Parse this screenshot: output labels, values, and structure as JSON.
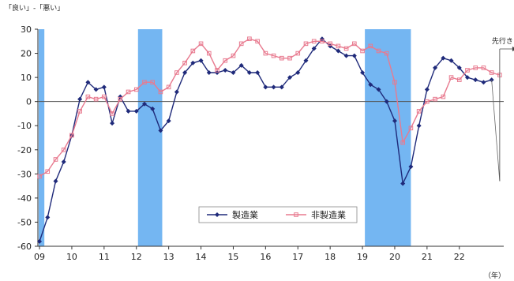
{
  "chart_data": {
    "type": "line",
    "ylabel": "「良い」-「悪い」",
    "x_unit_label": "（年）",
    "ylim": [
      -60,
      30
    ],
    "yticks": [
      30,
      20,
      10,
      0,
      -10,
      -20,
      -30,
      -40,
      -50,
      -60
    ],
    "xticks": [
      {
        "label": "09",
        "x": 0
      },
      {
        "label": "10",
        "x": 4
      },
      {
        "label": "11",
        "x": 8
      },
      {
        "label": "12",
        "x": 12
      },
      {
        "label": "13",
        "x": 16
      },
      {
        "label": "14",
        "x": 20
      },
      {
        "label": "15",
        "x": 24
      },
      {
        "label": "16",
        "x": 28
      },
      {
        "label": "17",
        "x": 32
      },
      {
        "label": "18",
        "x": 36
      },
      {
        "label": "19",
        "x": 40
      },
      {
        "label": "20",
        "x": 44
      },
      {
        "label": "21",
        "x": 48
      },
      {
        "label": "22",
        "x": 52
      }
    ],
    "xlim": [
      -0.2,
      57.5
    ],
    "recession_bands": [
      {
        "from": -0.1,
        "to": 0.6
      },
      {
        "from": 12.2,
        "to": 15.2
      },
      {
        "from": 40.3,
        "to": 46.0
      }
    ],
    "forecast_label": "先行き",
    "forecast_x": 57.0,
    "series": [
      {
        "name": "製造業",
        "color": "#1f2a7a",
        "marker": "diamond",
        "x": [
          0,
          1,
          2,
          3,
          4,
          5,
          6,
          7,
          8,
          9,
          10,
          11,
          12,
          13,
          14,
          15,
          16,
          17,
          18,
          19,
          20,
          21,
          22,
          23,
          24,
          25,
          26,
          27,
          28,
          29,
          30,
          31,
          32,
          33,
          34,
          35,
          36,
          37,
          38,
          39,
          40,
          41,
          42,
          43,
          44,
          45,
          46,
          47,
          48,
          49,
          50,
          51,
          52,
          53,
          54,
          55,
          56,
          57
        ],
        "values": [
          -58,
          -48,
          -33,
          -25,
          -14,
          1,
          8,
          5,
          6,
          -9,
          2,
          -4,
          -4,
          -1,
          -3,
          -12,
          -8,
          4,
          12,
          16,
          17,
          12,
          12,
          13,
          12,
          15,
          12,
          12,
          6,
          6,
          6,
          10,
          12,
          17,
          22,
          26,
          23,
          21,
          19,
          19,
          12,
          7,
          5,
          0,
          -8,
          -34,
          -27,
          -10,
          5,
          14,
          18,
          17,
          14,
          10,
          9,
          8,
          9,
          -33
        ],
        "forecast_from_index": 57
      },
      {
        "name": "非製造業",
        "color": "#e87a8f",
        "marker": "square",
        "x": [
          0,
          1,
          2,
          3,
          4,
          5,
          6,
          7,
          8,
          9,
          10,
          11,
          12,
          13,
          14,
          15,
          16,
          17,
          18,
          19,
          20,
          21,
          22,
          23,
          24,
          25,
          26,
          27,
          28,
          29,
          30,
          31,
          32,
          33,
          34,
          35,
          36,
          37,
          38,
          39,
          40,
          41,
          42,
          43,
          44,
          45,
          46,
          47,
          48,
          49,
          50,
          51,
          52,
          53,
          54,
          55,
          56,
          57
        ],
        "values": [
          -31,
          -29,
          -24,
          -20,
          -14,
          -4,
          2,
          1,
          2,
          -5,
          1,
          4,
          5,
          8,
          8,
          4,
          6,
          12,
          16,
          21,
          24,
          20,
          13,
          17,
          19,
          24,
          26,
          25,
          20,
          19,
          18,
          18,
          20,
          24,
          25,
          25,
          24,
          23,
          22,
          24,
          21,
          23,
          21,
          20,
          8,
          -17,
          -11,
          -4,
          0,
          1,
          2,
          10,
          9,
          13,
          14,
          14,
          12,
          11
        ]
      }
    ],
    "legend": [
      "製造業",
      "非製造業"
    ]
  }
}
